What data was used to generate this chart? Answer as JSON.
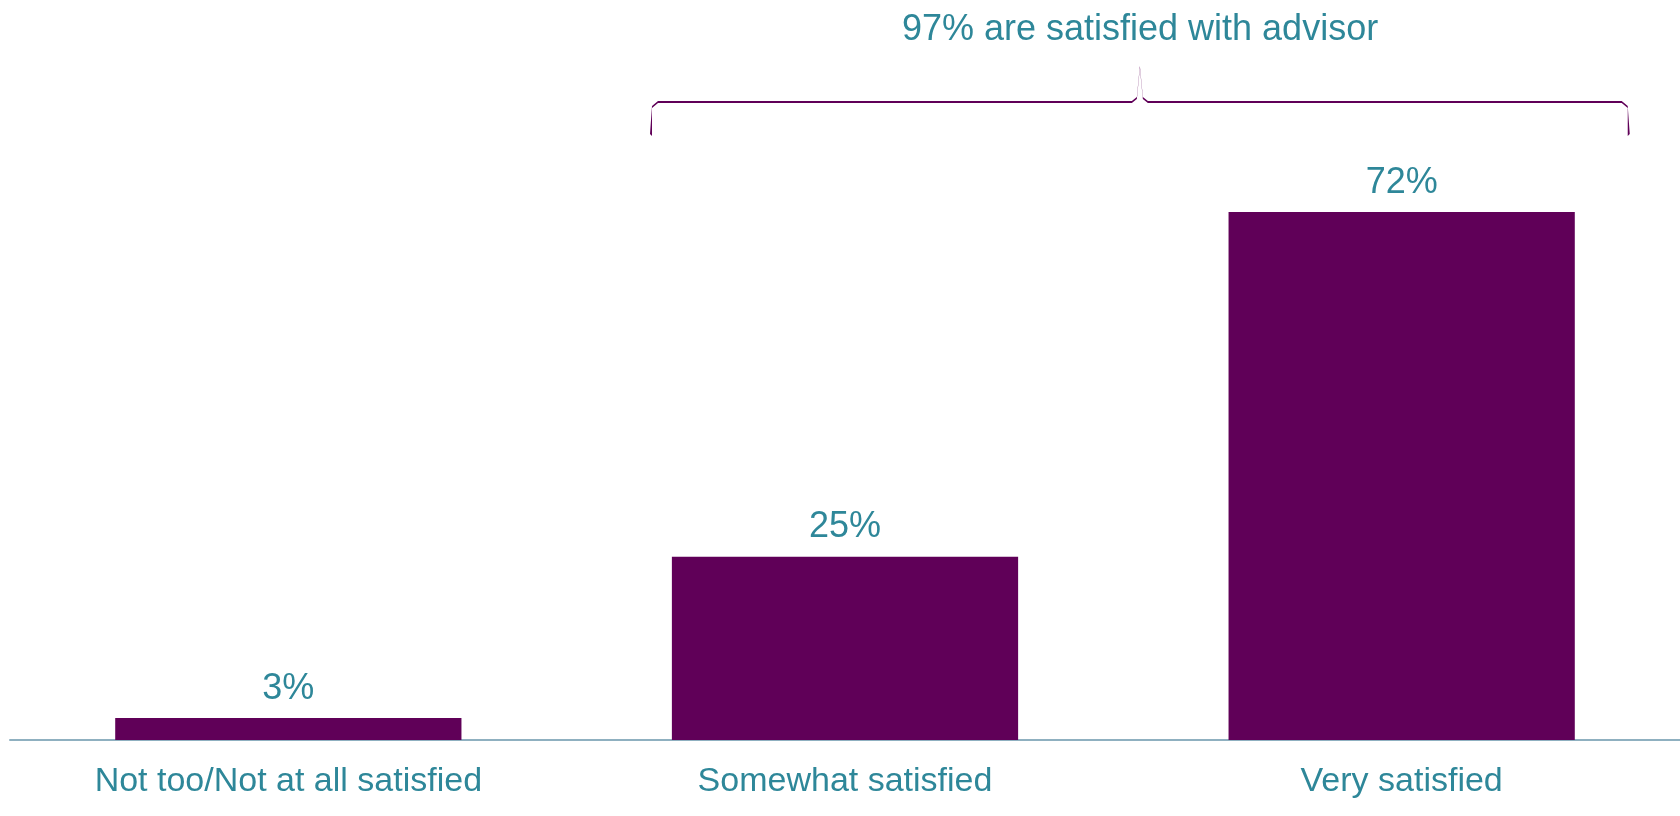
{
  "chart_data": {
    "type": "bar",
    "categories": [
      "Not too/Not at all satisfied",
      "Somewhat satisfied",
      "Very satisfied"
    ],
    "values": [
      3,
      25,
      72
    ],
    "value_labels": [
      "3%",
      "25%",
      "72%"
    ],
    "color": "#600058",
    "annotations": [
      "97% are satisfied with advisor"
    ]
  }
}
